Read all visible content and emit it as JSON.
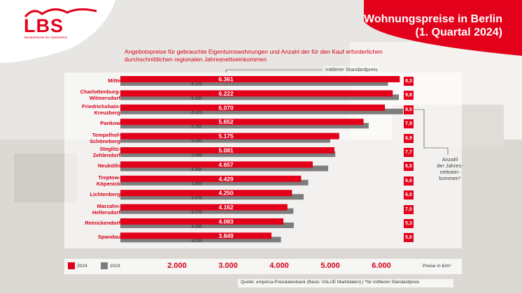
{
  "brand": {
    "logo": "LBS",
    "tagline": "Bausparkasse der Sparkassen"
  },
  "header": {
    "title_line1": "Wohnungspreise in Berlin",
    "title_line2": "(1. Quartal 2024)"
  },
  "subtitle": "Angebotspreise für gebrauchte Eigentumswohnungen und Anzahl der für den Kauf erforderlichen durchschnittlichen regionalen Jahresnettoeinkommen",
  "annotations": {
    "standard_price_note": "mittlerer Standardpreis",
    "income_note": "Anzahl der Jahres-netto­ein-kommen*"
  },
  "footer": {
    "unit": "Preise in €/m²",
    "source": "Quelle: empirica-Preisdatenbank (Basis: VALUE Marktdaten)  |  *für mittleren Standardpreis"
  },
  "colors": {
    "red": "#e2001a",
    "grey": "#7d7d7d"
  },
  "chart_data": {
    "type": "bar",
    "orientation": "horizontal",
    "categories": [
      "Mitte",
      "Charlottenburg-\nWilmersdorf",
      "Friedrichshain-\nKreuzberg",
      "Pankow",
      "Tempelhof-\nSchöneberg",
      "Steglitz-\nZehlendorf",
      "Neukölln",
      "Treptow-\nKöpenick",
      "Lichtenberg",
      "Marzahn-\nHellersdorf",
      "Reinickendorf",
      "Spandau"
    ],
    "series": [
      {
        "name": "2024",
        "values": [
          6361,
          6222,
          6070,
          5652,
          5175,
          5081,
          4657,
          4429,
          4250,
          4162,
          4083,
          3849
        ],
        "labels": [
          "6.361",
          "6.222",
          "6.070",
          "5.652",
          "5.175",
          "5.081",
          "4.657",
          "4.429",
          "4.250",
          "4.162",
          "4.083",
          "3.849"
        ]
      },
      {
        "name": "2023",
        "values": [
          6129,
          6343,
          6425,
          5752,
          5000,
          5099,
          4958,
          4568,
          4478,
          4278,
          4286,
          4035
        ],
        "labels": [
          "6.129",
          "6.343",
          "6.425",
          "5.752",
          "5.000",
          "5.099",
          "4.958",
          "4.568",
          "4.478",
          "4.278",
          "4.286",
          "4.035"
        ]
      }
    ],
    "income_multiples": [
      "8,3",
      "9,8",
      "8,5",
      "7,9",
      "6,9",
      "7,7",
      "6,0",
      "6,6",
      "6,0",
      "7,0",
      "5,3",
      "5,0"
    ],
    "xticks": [
      "2.000",
      "3.000",
      "4.000",
      "5.000",
      "6.000"
    ],
    "xtick_values": [
      2000,
      3000,
      4000,
      5000,
      6000
    ],
    "xunit": "Preise in €/m²",
    "legend": [
      "2024",
      "2023"
    ]
  }
}
